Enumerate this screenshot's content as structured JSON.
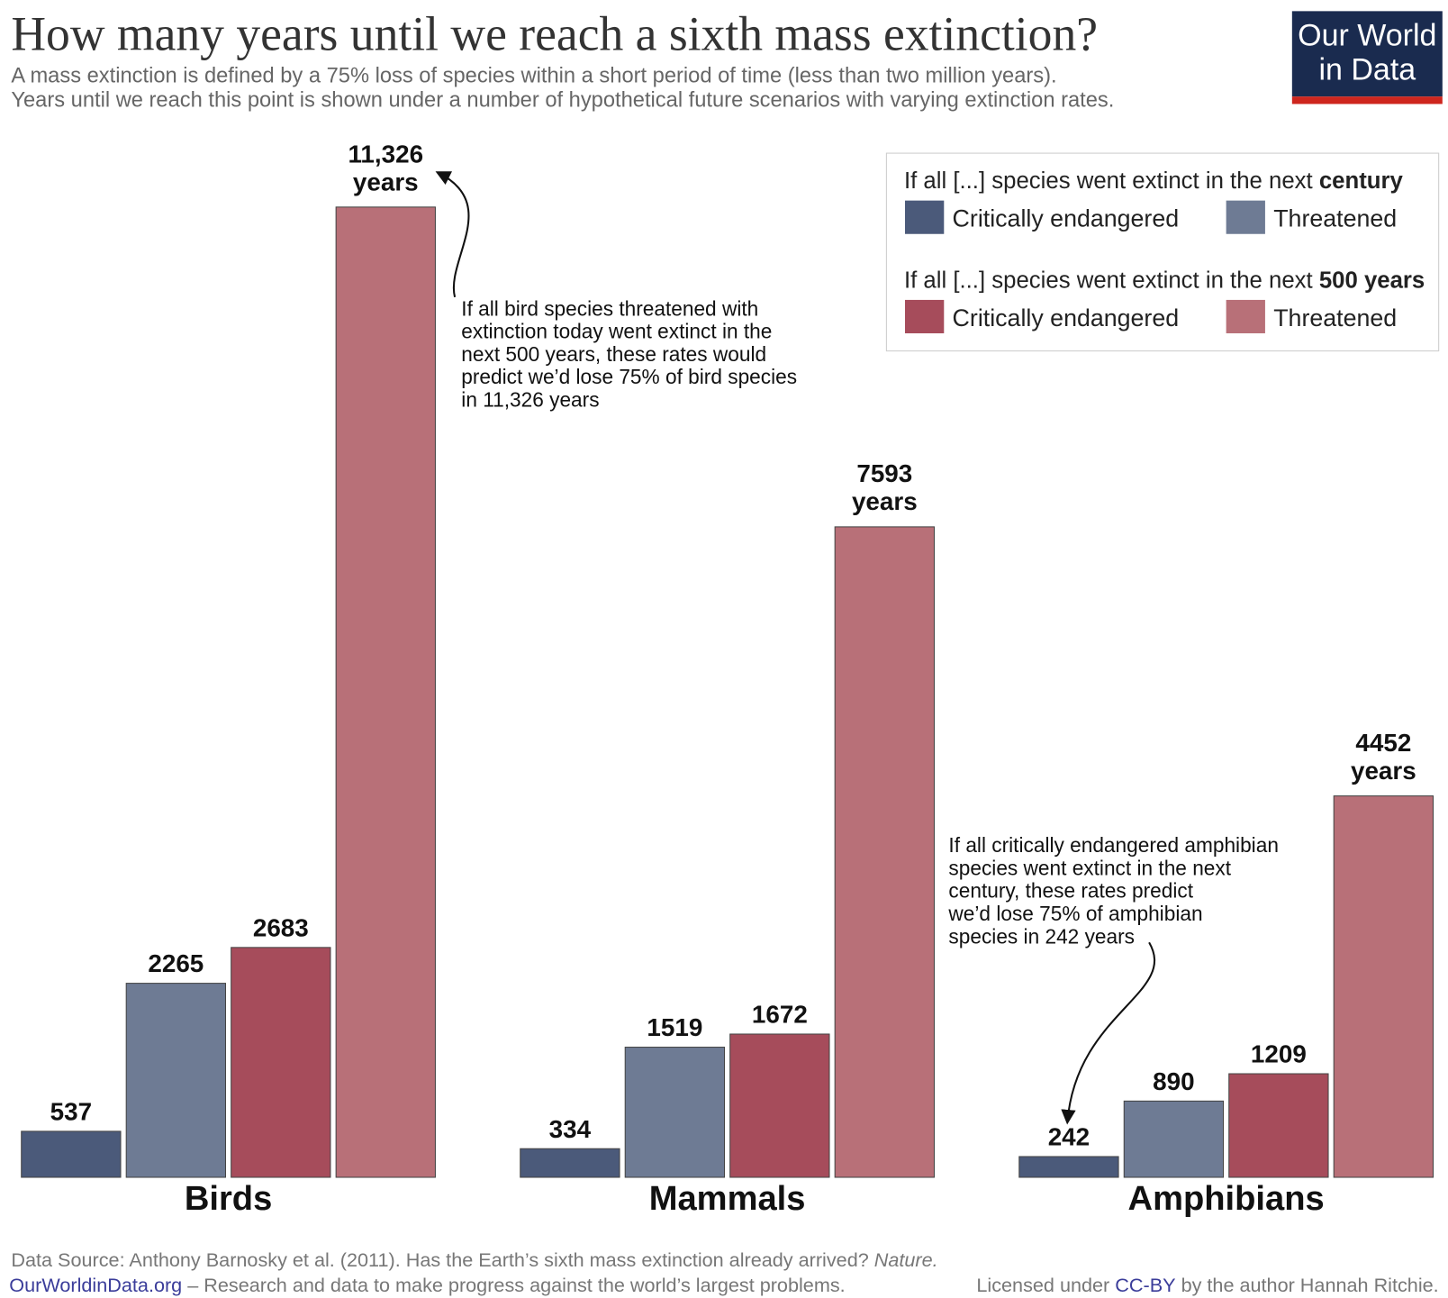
{
  "chart_data": {
    "type": "bar",
    "title": "How many years until we reach a sixth mass extinction?",
    "subtitle": [
      "A mass extinction is defined by a 75% loss of species within a  short period of time (less than two million years).",
      "Years until we reach this point is shown under a number of hypothetical future scenarios with varying extinction rates."
    ],
    "categories": [
      "Birds",
      "Mammals",
      "Amphibians"
    ],
    "series": [
      {
        "name": "Critically endangered",
        "color": "#4b5a7a",
        "values": [
          537,
          334,
          242
        ]
      },
      {
        "name": "Threatened",
        "color": "#6e7b94",
        "values": [
          2265,
          1519,
          890
        ]
      },
      {
        "name": "Critically endangered",
        "color": "#a64c5b",
        "values": [
          2683,
          1672,
          1209
        ]
      },
      {
        "name": "Threatened",
        "color": "#b87078",
        "values": [
          11326,
          7593,
          4452
        ],
        "value_labels": [
          "11,326 years",
          "7593 years",
          "4452 years"
        ]
      }
    ],
    "legend_titles": [
      {
        "text": "If all [...] species went extinct in the next ",
        "bold": "century"
      },
      {
        "text": "If all [...] species went extinct in the next ",
        "bold": "500 years"
      }
    ],
    "annotations": [
      [
        "If all bird species threatened with",
        "extinction today went extinct in the",
        "next 500 years, these rates would",
        "predict we’d lose 75% of bird species",
        "in 11,326 years"
      ],
      [
        "If all critically endangered amphibian",
        "species went extinct in the next",
        "century, these rates predict",
        "we’d lose 75% of amphibian",
        "species in 242 years"
      ]
    ],
    "source": {
      "text": "Data Source: Anthony Barnosky et al. (2011). Has the Earth’s sixth mass extinction already arrived? ",
      "italic": "Nature."
    },
    "footer": {
      "site": "OurWorldinData.org",
      "tagline": " – Research and data to make progress against the world’s largest problems.",
      "license": "Licensed under ",
      "license_link": "CC-BY",
      "author": " by the author Hannah Ritchie."
    },
    "logo": [
      "Our World",
      "in Data"
    ]
  }
}
